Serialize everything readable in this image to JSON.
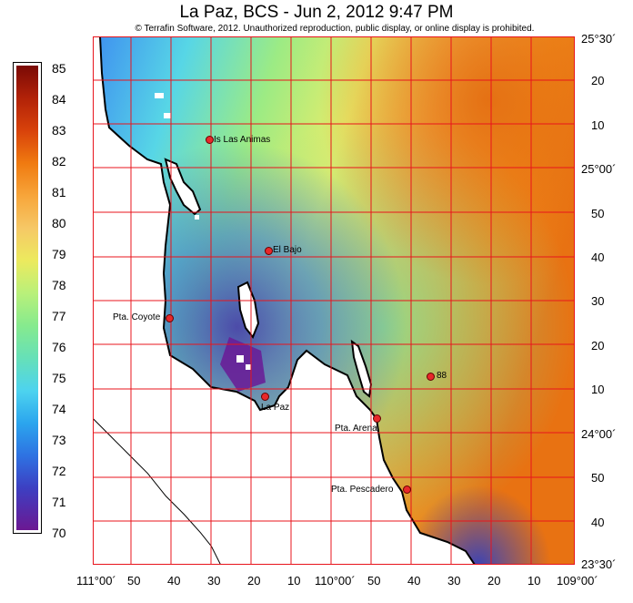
{
  "title": "La Paz, BCS - Jun 2, 2012 9:47 PM",
  "copyright": "© Terrafin Software,  2012.  Unauthorized reproduction, public display, or online display is prohibited.",
  "legend": {
    "labels": [
      "85",
      "84",
      "83",
      "82",
      "81",
      "80",
      "79",
      "78",
      "77",
      "76",
      "75",
      "74",
      "73",
      "72",
      "71",
      "70"
    ]
  },
  "lat_labels": [
    "25°30´",
    "20",
    "10",
    "25°00´",
    "50",
    "40",
    "30",
    "20",
    "10",
    "24°00´",
    "50",
    "40",
    "23°30´"
  ],
  "lon_labels": [
    "111°00´",
    "50",
    "40",
    "30",
    "20",
    "10",
    "110°00´",
    "50",
    "40",
    "30",
    "20",
    "10",
    "109°00´"
  ],
  "places": {
    "las_animas": "Is Las Animas",
    "el_bajo": "El Bajo",
    "coyote": "Pta. Coyote",
    "la_paz": "La Paz",
    "arena": "Pta. Arena",
    "pescadero": "Pta. Pescadero",
    "buoy": "88"
  },
  "colors": {
    "grid": "#e8141c",
    "land": "#ffffff",
    "coast": "#000000",
    "marker": "#e8282a"
  }
}
